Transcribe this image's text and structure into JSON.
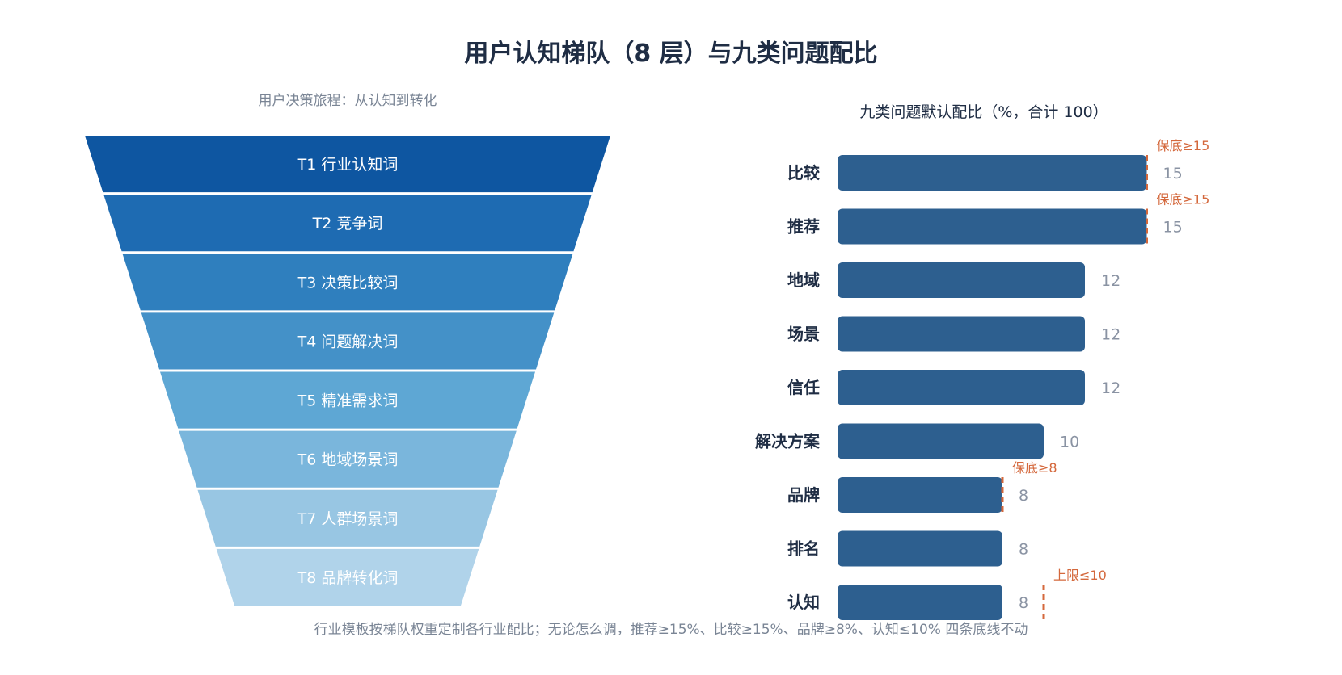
{
  "title": "用户认知梯队（8 层）与九类问题配比",
  "footer": "行业模板按梯队权重定制各行业配比；无论怎么调，推荐≥15%、比较≥15%、品牌≥8%、认知≤10% 四条底线不动",
  "colors": {
    "bar": "#2d5f8f",
    "annotation": "#d4683c",
    "value_label": "#8a93a3",
    "subtitle": "#7a8595",
    "title": "#1f2d44",
    "funnel": [
      "#0e56a1",
      "#1e6bb2",
      "#2f7fbe",
      "#4491c8",
      "#5ea7d4",
      "#7ab6dc",
      "#98c6e3",
      "#b0d3ea"
    ]
  },
  "chart_data": [
    {
      "type": "funnel",
      "subtitle": "用户决策旅程：从认知到转化",
      "layers": [
        "T1 行业认知词",
        "T2 竞争词",
        "T3 决策比较词",
        "T4 问题解决词",
        "T5 精准需求词",
        "T6 地域场景词",
        "T7 人群场景词",
        "T8 品牌转化词"
      ]
    },
    {
      "type": "bar",
      "orientation": "horizontal",
      "title": "九类问题默认配比（%，合计 100）",
      "categories": [
        "比较",
        "推荐",
        "地域",
        "场景",
        "信任",
        "解决方案",
        "品牌",
        "排名",
        "认知"
      ],
      "values": [
        15,
        15,
        12,
        12,
        12,
        10,
        8,
        8,
        8
      ],
      "xlim": [
        0,
        16
      ],
      "annotations": [
        {
          "category": "比较",
          "type": "floor",
          "value": 15,
          "label": "保底≥15"
        },
        {
          "category": "推荐",
          "type": "floor",
          "value": 15,
          "label": "保底≥15"
        },
        {
          "category": "品牌",
          "type": "floor",
          "value": 8,
          "label": "保底≥8"
        },
        {
          "category": "认知",
          "type": "cap",
          "value": 10,
          "label": "上限≤10"
        }
      ]
    }
  ]
}
